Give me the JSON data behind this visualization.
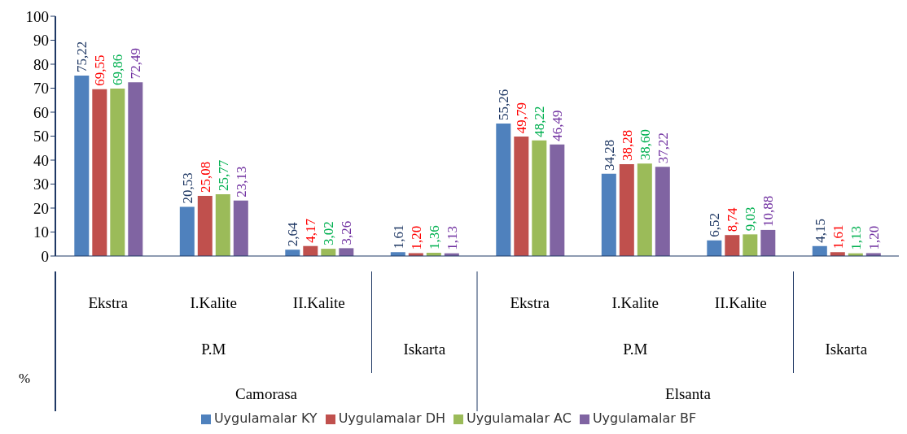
{
  "chart_data": {
    "type": "bar",
    "ylabel": "%",
    "categories": [
      "Ekstra",
      "I.Kalite",
      "II.Kalite",
      null,
      "Ekstra",
      "I.Kalite",
      "II.Kalite",
      null
    ],
    "series": [
      {
        "name": "Uygulamalar KY",
        "color": "#4f81bd",
        "values": [
          75.22,
          20.53,
          2.64,
          1.61,
          55.26,
          34.28,
          6.52,
          4.15
        ],
        "value_labels": [
          "75,22",
          "20,53",
          "2,64",
          "1,61",
          "55,26",
          "34,28",
          "6,52",
          "4,15"
        ]
      },
      {
        "name": "Uygulamalar DH",
        "color": "#c0504d",
        "values": [
          69.55,
          25.08,
          4.17,
          1.2,
          49.79,
          38.28,
          8.74,
          1.61
        ],
        "value_labels": [
          "69,55",
          "25,08",
          "4,17",
          "1,20",
          "49,79",
          "38,28",
          "8,74",
          "1,61"
        ]
      },
      {
        "name": "Uygulamalar AC",
        "color": "#9bbb59",
        "values": [
          69.86,
          25.77,
          3.02,
          1.36,
          48.22,
          38.6,
          9.03,
          1.13
        ],
        "value_labels": [
          "69,86",
          "25,77",
          "3,02",
          "1,36",
          "48,22",
          "38,60",
          "9,03",
          "1,13"
        ]
      },
      {
        "name": "Uygulamalar BF",
        "color": "#8064a2",
        "values": [
          72.49,
          23.13,
          3.26,
          1.13,
          46.49,
          37.22,
          10.88,
          1.2
        ],
        "value_labels": [
          "72,49",
          "23,13",
          "3,26",
          "1,13",
          "46,49",
          "37,22",
          "10,88",
          "1,20"
        ]
      }
    ],
    "annotations": [
      "P.M",
      "Iskarta",
      "P.M",
      "Iskarta",
      "Camorasa",
      "Elsanta"
    ],
    "ylim": [
      0,
      100
    ],
    "yticks": [
      0,
      10,
      20,
      30,
      40,
      50,
      60,
      70,
      80,
      90,
      100
    ],
    "legend": "bottom",
    "grid": false
  }
}
